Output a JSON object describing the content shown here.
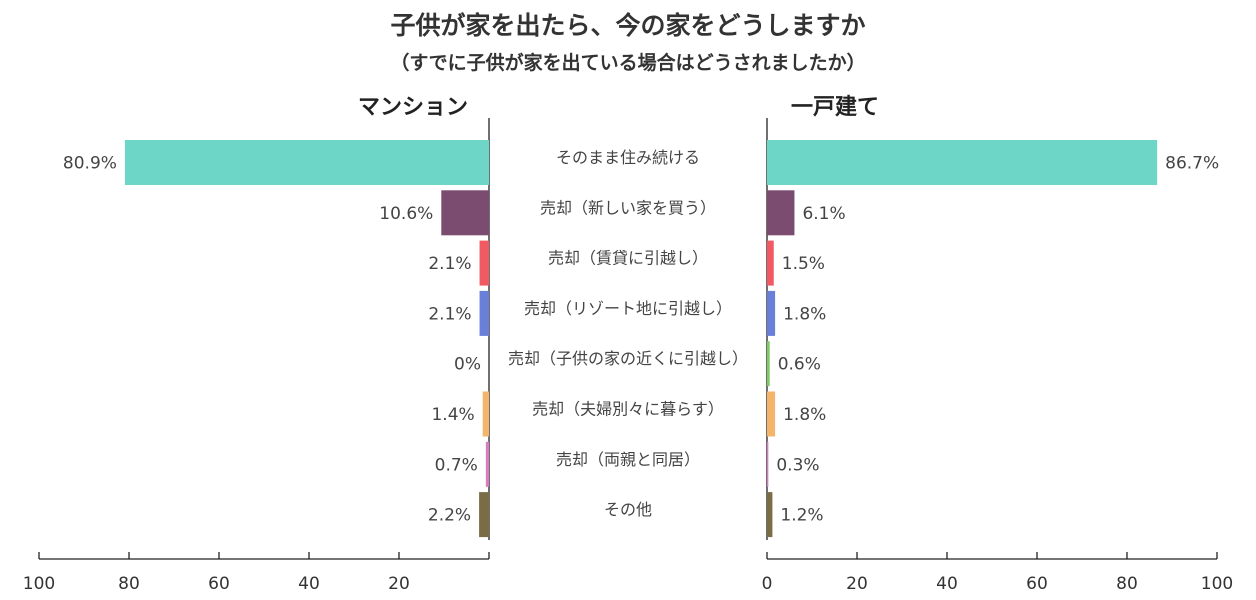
{
  "chart_data": {
    "type": "bar",
    "title": "子供が家を出たら、今の家をどうしますか",
    "subtitle": "（すでに子供が家を出ている場合はどうされましたか）",
    "categories": [
      "そのまま住み続ける",
      "売却（新しい家を買う）",
      "売却（賃貸に引越し）",
      "売却（リゾート地に引越し）",
      "売却（子供の家の近くに引越し）",
      "売却（夫婦別々に暮らす）",
      "売却（両親と同居）",
      "その他"
    ],
    "category_colors": [
      "#6dd6c6",
      "#7b4b70",
      "#f25a63",
      "#6a7fd8",
      "#7ecb64",
      "#f4b56a",
      "#d77cc0",
      "#7a6c45"
    ],
    "series": [
      {
        "name": "マンション",
        "values": [
          80.9,
          10.6,
          2.1,
          2.1,
          0,
          1.4,
          0.7,
          2.2
        ],
        "value_labels": [
          "80.9%",
          "10.6%",
          "2.1%",
          "2.1%",
          "0%",
          "1.4%",
          "0.7%",
          "2.2%"
        ],
        "xlim": [
          0,
          100
        ],
        "direction": "reversed",
        "ticks": [
          "20",
          "40",
          "60",
          "80",
          "100"
        ]
      },
      {
        "name": "一戸建て",
        "values": [
          86.7,
          6.1,
          1.5,
          1.8,
          0.6,
          1.8,
          0.3,
          1.2
        ],
        "value_labels": [
          "86.7%",
          "6.1%",
          "1.5%",
          "1.8%",
          "0.6%",
          "1.8%",
          "0.3%",
          "1.2%"
        ],
        "xlim": [
          0,
          100
        ],
        "direction": "normal",
        "ticks": [
          "0",
          "20",
          "40",
          "60",
          "80",
          "100"
        ]
      }
    ],
    "grid": false,
    "legend": "none"
  }
}
